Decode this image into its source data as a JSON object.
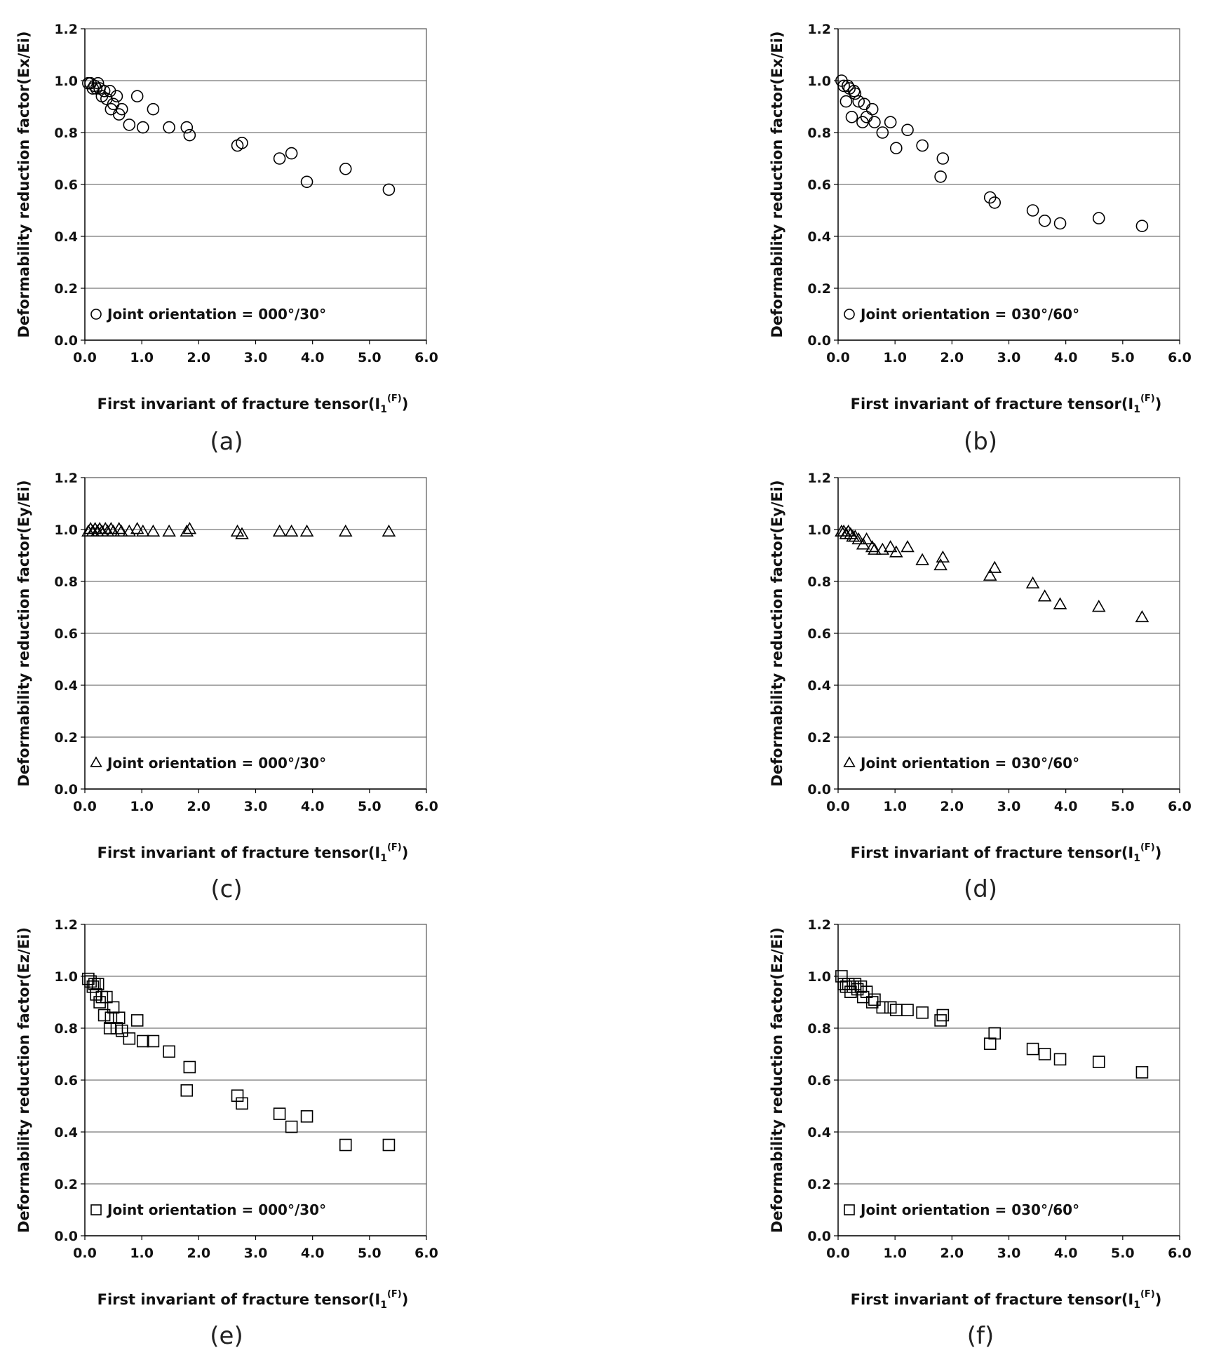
{
  "chart_data": [
    {
      "id": "a",
      "caption": "(a)",
      "type": "scatter",
      "marker": "circle",
      "ylabel": "Deformability reduction factor(Ex/Ei)",
      "xlabel": "First invariant of fracture tensor(I",
      "xlabel_sub": "1",
      "xlabel_sup": "(F)",
      "xlabel_end": ")",
      "legend": "Joint orientation = 000°/30°",
      "xlim": [
        0,
        6
      ],
      "ylim": [
        0,
        1.2
      ],
      "xticks": [
        "0.0",
        "1.0",
        "2.0",
        "3.0",
        "4.0",
        "5.0",
        "6.0"
      ],
      "yticks": [
        "0.0",
        "0.2",
        "0.4",
        "0.6",
        "0.8",
        "1.0",
        "1.2"
      ],
      "x": [
        0.06,
        0.1,
        0.14,
        0.17,
        0.2,
        0.23,
        0.26,
        0.3,
        0.34,
        0.38,
        0.44,
        0.46,
        0.5,
        0.56,
        0.6,
        0.65,
        0.78,
        0.92,
        1.02,
        1.2,
        1.48,
        1.79,
        1.84,
        2.68,
        2.76,
        3.42,
        3.63,
        3.9,
        4.58,
        5.34
      ],
      "y": [
        0.99,
        0.99,
        0.97,
        0.98,
        0.97,
        0.99,
        0.97,
        0.94,
        0.96,
        0.93,
        0.96,
        0.89,
        0.91,
        0.94,
        0.87,
        0.89,
        0.83,
        0.94,
        0.82,
        0.89,
        0.82,
        0.82,
        0.79,
        0.75,
        0.76,
        0.7,
        0.72,
        0.61,
        0.66,
        0.58
      ]
    },
    {
      "id": "b",
      "caption": "(b)",
      "type": "scatter",
      "marker": "circle",
      "ylabel": "Deformability reduction factor(Ex/Ei)",
      "xlabel": "First invariant of fracture tensor(I",
      "xlabel_sub": "1",
      "xlabel_sup": "(F)",
      "xlabel_end": ")",
      "legend": "Joint orientation = 030°/60°",
      "xlim": [
        0,
        6
      ],
      "ylim": [
        0,
        1.2
      ],
      "xticks": [
        "0.0",
        "1.0",
        "2.0",
        "3.0",
        "4.0",
        "5.0",
        "6.0"
      ],
      "yticks": [
        "0.0",
        "0.2",
        "0.4",
        "0.6",
        "0.8",
        "1.0",
        "1.2"
      ],
      "x": [
        0.06,
        0.1,
        0.14,
        0.17,
        0.2,
        0.24,
        0.28,
        0.3,
        0.36,
        0.43,
        0.46,
        0.5,
        0.6,
        0.64,
        0.78,
        0.92,
        1.02,
        1.22,
        1.48,
        1.8,
        1.84,
        2.67,
        2.75,
        3.42,
        3.63,
        3.9,
        4.58,
        5.34
      ],
      "y": [
        1.0,
        0.98,
        0.92,
        0.98,
        0.97,
        0.86,
        0.96,
        0.95,
        0.92,
        0.84,
        0.91,
        0.86,
        0.89,
        0.84,
        0.8,
        0.84,
        0.74,
        0.81,
        0.75,
        0.63,
        0.7,
        0.55,
        0.53,
        0.5,
        0.46,
        0.45,
        0.47,
        0.44
      ]
    },
    {
      "id": "c",
      "caption": "(c)",
      "type": "scatter",
      "marker": "triangle",
      "ylabel": "Deformability reduction factor(Ey/Ei)",
      "xlabel": "First invariant of fracture tensor(I",
      "xlabel_sub": "1",
      "xlabel_sup": "(F)",
      "xlabel_end": ")",
      "legend": "Joint orientation = 000°/30°",
      "xlim": [
        0,
        6
      ],
      "ylim": [
        0,
        1.2
      ],
      "xticks": [
        "0.0",
        "1.0",
        "2.0",
        "3.0",
        "4.0",
        "5.0",
        "6.0"
      ],
      "yticks": [
        "0.0",
        "0.2",
        "0.4",
        "0.6",
        "0.8",
        "1.0",
        "1.2"
      ],
      "x": [
        0.06,
        0.1,
        0.14,
        0.18,
        0.22,
        0.26,
        0.3,
        0.36,
        0.4,
        0.46,
        0.5,
        0.6,
        0.64,
        0.78,
        0.92,
        1.02,
        1.2,
        1.48,
        1.79,
        1.84,
        2.68,
        2.76,
        3.42,
        3.63,
        3.9,
        4.58,
        5.34
      ],
      "y": [
        0.99,
        1.0,
        0.99,
        1.0,
        0.99,
        1.0,
        0.99,
        1.0,
        0.99,
        1.0,
        0.99,
        1.0,
        0.99,
        0.99,
        1.0,
        0.99,
        0.99,
        0.99,
        0.99,
        1.0,
        0.99,
        0.98,
        0.99,
        0.99,
        0.99,
        0.99,
        0.99
      ]
    },
    {
      "id": "d",
      "caption": "(d)",
      "type": "scatter",
      "marker": "triangle",
      "ylabel": "Deformability reduction factor(Ey/Ei)",
      "xlabel": "First invariant of fracture tensor(I",
      "xlabel_sub": "1",
      "xlabel_sup": "(F)",
      "xlabel_end": ")",
      "legend": "Joint orientation = 030°/60°",
      "xlim": [
        0,
        6
      ],
      "ylim": [
        0,
        1.2
      ],
      "xticks": [
        "0.0",
        "1.0",
        "2.0",
        "3.0",
        "4.0",
        "5.0",
        "6.0"
      ],
      "yticks": [
        "0.0",
        "0.2",
        "0.4",
        "0.6",
        "0.8",
        "1.0",
        "1.2"
      ],
      "x": [
        0.06,
        0.1,
        0.14,
        0.18,
        0.22,
        0.26,
        0.3,
        0.36,
        0.44,
        0.5,
        0.6,
        0.64,
        0.78,
        0.92,
        1.02,
        1.22,
        1.48,
        1.8,
        1.84,
        2.67,
        2.75,
        3.42,
        3.63,
        3.9,
        4.58,
        5.34
      ],
      "y": [
        0.99,
        0.99,
        0.98,
        0.99,
        0.98,
        0.97,
        0.97,
        0.96,
        0.94,
        0.96,
        0.93,
        0.92,
        0.92,
        0.93,
        0.91,
        0.93,
        0.88,
        0.86,
        0.89,
        0.82,
        0.85,
        0.79,
        0.74,
        0.71,
        0.7,
        0.66
      ]
    },
    {
      "id": "e",
      "caption": "(e)",
      "type": "scatter",
      "marker": "square",
      "ylabel": "Deformability reduction factor(Ez/Ei)",
      "xlabel": "First invariant of fracture tensor(I",
      "xlabel_sub": "1",
      "xlabel_sup": "(F)",
      "xlabel_end": ")",
      "legend": "Joint orientation = 000°/30°",
      "xlim": [
        0,
        6
      ],
      "ylim": [
        0,
        1.2
      ],
      "xticks": [
        "0.0",
        "1.0",
        "2.0",
        "3.0",
        "4.0",
        "5.0",
        "6.0"
      ],
      "yticks": [
        "0.0",
        "0.2",
        "0.4",
        "0.6",
        "0.8",
        "1.0",
        "1.2"
      ],
      "x": [
        0.06,
        0.1,
        0.14,
        0.17,
        0.2,
        0.23,
        0.26,
        0.3,
        0.34,
        0.38,
        0.44,
        0.46,
        0.5,
        0.56,
        0.6,
        0.65,
        0.78,
        0.92,
        1.02,
        1.2,
        1.48,
        1.79,
        1.84,
        2.68,
        2.76,
        3.42,
        3.63,
        3.9,
        4.58,
        5.34
      ],
      "y": [
        0.99,
        0.98,
        0.96,
        0.97,
        0.93,
        0.97,
        0.9,
        0.92,
        0.85,
        0.92,
        0.8,
        0.84,
        0.88,
        0.8,
        0.84,
        0.79,
        0.76,
        0.83,
        0.75,
        0.75,
        0.71,
        0.56,
        0.65,
        0.54,
        0.51,
        0.47,
        0.42,
        0.46,
        0.35,
        0.35
      ]
    },
    {
      "id": "f",
      "caption": "(f)",
      "type": "scatter",
      "marker": "square",
      "ylabel": "Deformability reduction factor(Ez/Ei)",
      "xlabel": "First invariant of fracture tensor(I",
      "xlabel_sub": "1",
      "xlabel_sup": "(F)",
      "xlabel_end": ")",
      "legend": "Joint orientation = 030°/60°",
      "xlim": [
        0,
        6
      ],
      "ylim": [
        0,
        1.2
      ],
      "xticks": [
        "0.0",
        "1.0",
        "2.0",
        "3.0",
        "4.0",
        "5.0",
        "6.0"
      ],
      "yticks": [
        "0.0",
        "0.2",
        "0.4",
        "0.6",
        "0.8",
        "1.0",
        "1.2"
      ],
      "x": [
        0.06,
        0.1,
        0.14,
        0.18,
        0.22,
        0.26,
        0.3,
        0.34,
        0.4,
        0.44,
        0.5,
        0.6,
        0.64,
        0.78,
        0.92,
        1.02,
        1.22,
        1.48,
        1.8,
        1.84,
        2.67,
        2.75,
        3.42,
        3.63,
        3.9,
        4.58,
        5.34
      ],
      "y": [
        1.0,
        0.97,
        0.96,
        0.97,
        0.94,
        0.96,
        0.97,
        0.95,
        0.96,
        0.92,
        0.94,
        0.9,
        0.91,
        0.88,
        0.88,
        0.87,
        0.87,
        0.86,
        0.83,
        0.85,
        0.74,
        0.78,
        0.72,
        0.7,
        0.68,
        0.67,
        0.63
      ]
    }
  ]
}
